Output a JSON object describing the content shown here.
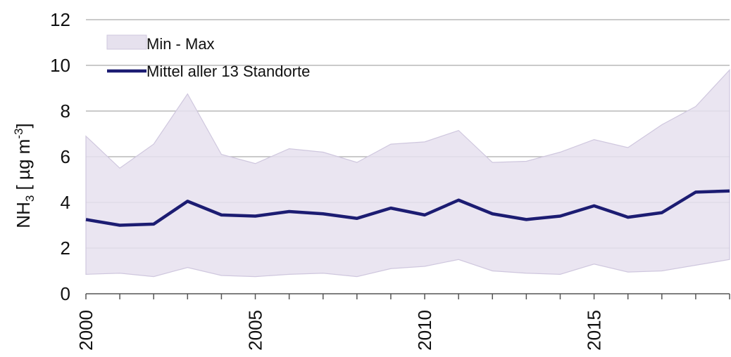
{
  "chart_data": {
    "type": "line",
    "y_label": {
      "base": "NH",
      "sub": "3",
      "mid": " [ µg m",
      "sup": "-3",
      "end": "]"
    },
    "x": [
      2000,
      2001,
      2002,
      2003,
      2004,
      2005,
      2006,
      2007,
      2008,
      2009,
      2010,
      2011,
      2012,
      2013,
      2014,
      2015,
      2016,
      2017,
      2018,
      2019
    ],
    "xlim": [
      2000,
      2019
    ],
    "xticks": [
      2000,
      2005,
      2010,
      2015
    ],
    "ylim": [
      0,
      12
    ],
    "yticks": [
      0,
      2,
      4,
      6,
      8,
      10,
      12
    ],
    "grid": true,
    "legend": "upper-left",
    "series": [
      {
        "name": "Min - Max",
        "type": "range",
        "color": "#e6e1ee",
        "edge_color": "#cfc7de",
        "upper": [
          6.9,
          5.5,
          6.55,
          8.75,
          6.1,
          5.7,
          6.35,
          6.2,
          5.75,
          6.55,
          6.65,
          7.15,
          5.75,
          5.8,
          6.2,
          6.75,
          6.4,
          7.4,
          8.2,
          9.8
        ],
        "lower": [
          0.85,
          0.9,
          0.75,
          1.15,
          0.8,
          0.75,
          0.85,
          0.9,
          0.75,
          1.1,
          1.2,
          1.5,
          1.0,
          0.9,
          0.85,
          1.3,
          0.95,
          1.0,
          1.25,
          1.5
        ]
      },
      {
        "name": "Mittel aller 13 Standorte",
        "type": "line",
        "color": "#1c1c72",
        "values": [
          3.25,
          3.0,
          3.05,
          4.05,
          3.45,
          3.4,
          3.6,
          3.5,
          3.3,
          3.75,
          3.45,
          4.1,
          3.5,
          3.25,
          3.4,
          3.85,
          3.35,
          3.55,
          4.45,
          4.5
        ]
      }
    ]
  }
}
